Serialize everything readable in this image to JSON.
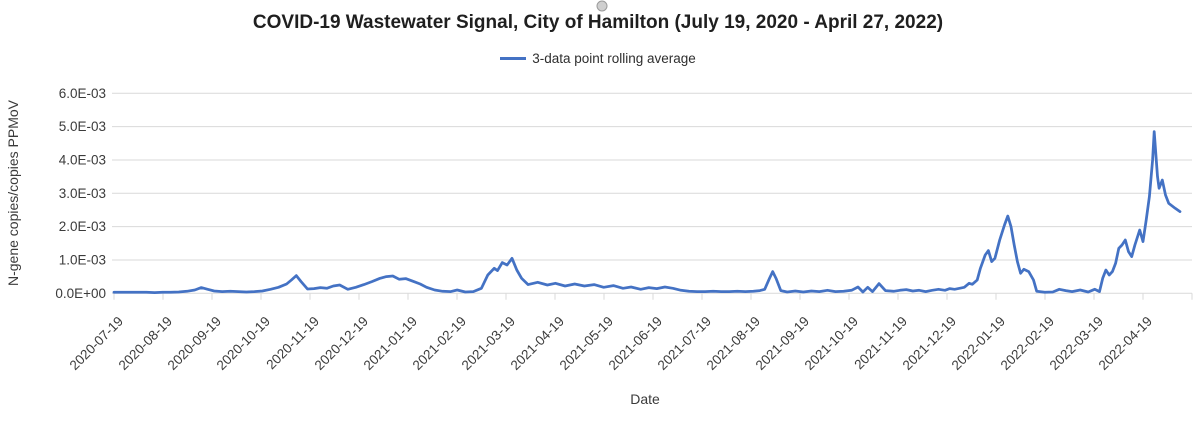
{
  "chart": {
    "title": "COVID-19 Wastewater Signal, City of Hamilton (July 19, 2020 - April 27, 2022)",
    "legend_label": "3-data point rolling average",
    "x_axis_title": "Date",
    "y_axis_title": "N-gene copies/copies PPMoV",
    "line_color": "#4472C4",
    "gridline_color": "#D9D9D9",
    "tick_label_color": "#3b3b3b"
  },
  "chart_data": {
    "type": "line",
    "title": "COVID-19 Wastewater Signal, City of Hamilton (July 19, 2020 - April 27, 2022)",
    "xlabel": "Date",
    "ylabel": "N-gene copies/copies PPMoV",
    "legend": [
      "3-data point rolling average"
    ],
    "legend_position": "top",
    "grid": "horizontal",
    "ylim": [
      0,
      0.006
    ],
    "y_tick_labels": [
      "0.0E+00",
      "1.0E-03",
      "2.0E-03",
      "3.0E-03",
      "4.0E-03",
      "5.0E-03",
      "6.0E-03"
    ],
    "x_tick_labels": [
      "2020-07-19",
      "2020-08-19",
      "2020-09-19",
      "2020-10-19",
      "2020-11-19",
      "2020-12-19",
      "2021-01-19",
      "2021-02-19",
      "2021-03-19",
      "2021-04-19",
      "2021-05-19",
      "2021-06-19",
      "2021-07-19",
      "2021-08-19",
      "2021-09-19",
      "2021-10-19",
      "2021-11-19",
      "2021-12-19",
      "2022-01-19",
      "2022-02-19",
      "2022-03-19",
      "2022-04-19"
    ],
    "series": [
      {
        "name": "3-data point rolling average",
        "color": "#4472C4",
        "points": [
          [
            "2020-07-19",
            3e-05
          ],
          [
            "2020-07-24",
            3e-05
          ],
          [
            "2020-07-29",
            2e-05
          ],
          [
            "2020-08-03",
            3e-05
          ],
          [
            "2020-08-08",
            3e-05
          ],
          [
            "2020-08-13",
            4e-05
          ],
          [
            "2020-08-18",
            6e-05
          ],
          [
            "2020-08-23",
            0.0001
          ],
          [
            "2020-08-27",
            0.00017
          ],
          [
            "2020-08-31",
            0.00012
          ],
          [
            "2020-09-04",
            7e-05
          ],
          [
            "2020-09-09",
            5e-05
          ],
          [
            "2020-09-14",
            6e-05
          ],
          [
            "2020-09-19",
            5e-05
          ],
          [
            "2020-09-24",
            4e-05
          ],
          [
            "2020-09-29",
            5e-05
          ],
          [
            "2020-10-04",
            7e-05
          ],
          [
            "2020-10-09",
            0.00012
          ],
          [
            "2020-10-14",
            0.00018
          ],
          [
            "2020-10-19",
            0.00028
          ],
          [
            "2020-10-22",
            0.0004
          ],
          [
            "2020-10-25",
            0.00053
          ],
          [
            "2020-10-28",
            0.00035
          ],
          [
            "2020-11-01",
            0.00013
          ],
          [
            "2020-11-05",
            0.00014
          ],
          [
            "2020-11-09",
            0.00017
          ],
          [
            "2020-11-13",
            0.00015
          ],
          [
            "2020-11-17",
            0.00022
          ],
          [
            "2020-11-21",
            0.00025
          ],
          [
            "2020-11-26",
            0.00012
          ],
          [
            "2020-12-01",
            0.00018
          ],
          [
            "2020-12-06",
            0.00026
          ],
          [
            "2020-12-11",
            0.00035
          ],
          [
            "2020-12-16",
            0.00045
          ],
          [
            "2020-12-20",
            0.0005
          ],
          [
            "2020-12-24",
            0.00052
          ],
          [
            "2020-12-28",
            0.00042
          ],
          [
            "2021-01-01",
            0.00044
          ],
          [
            "2021-01-06",
            0.00035
          ],
          [
            "2021-01-10",
            0.00028
          ],
          [
            "2021-01-14",
            0.00018
          ],
          [
            "2021-01-19",
            0.0001
          ],
          [
            "2021-01-24",
            6e-05
          ],
          [
            "2021-01-29",
            5e-05
          ],
          [
            "2021-02-02",
            0.0001
          ],
          [
            "2021-02-07",
            4e-05
          ],
          [
            "2021-02-12",
            5e-05
          ],
          [
            "2021-02-17",
            0.00015
          ],
          [
            "2021-02-21",
            0.00055
          ],
          [
            "2021-02-25",
            0.00075
          ],
          [
            "2021-02-27",
            0.00068
          ],
          [
            "2021-03-02",
            0.00092
          ],
          [
            "2021-03-05",
            0.00085
          ],
          [
            "2021-03-08",
            0.00105
          ],
          [
            "2021-03-11",
            0.0007
          ],
          [
            "2021-03-14",
            0.00045
          ],
          [
            "2021-03-18",
            0.00026
          ],
          [
            "2021-03-24",
            0.00033
          ],
          [
            "2021-03-30",
            0.00025
          ],
          [
            "2021-04-04",
            0.0003
          ],
          [
            "2021-04-10",
            0.00022
          ],
          [
            "2021-04-16",
            0.00028
          ],
          [
            "2021-04-22",
            0.00022
          ],
          [
            "2021-04-28",
            0.00026
          ],
          [
            "2021-05-04",
            0.00018
          ],
          [
            "2021-05-10",
            0.00023
          ],
          [
            "2021-05-16",
            0.00015
          ],
          [
            "2021-05-21",
            0.00019
          ],
          [
            "2021-05-27",
            0.00012
          ],
          [
            "2021-06-01",
            0.00017
          ],
          [
            "2021-06-06",
            0.00014
          ],
          [
            "2021-06-11",
            0.00019
          ],
          [
            "2021-06-16",
            0.00015
          ],
          [
            "2021-06-21",
            9e-05
          ],
          [
            "2021-06-26",
            6e-05
          ],
          [
            "2021-07-01",
            5e-05
          ],
          [
            "2021-07-06",
            5e-05
          ],
          [
            "2021-07-11",
            6e-05
          ],
          [
            "2021-07-16",
            5e-05
          ],
          [
            "2021-07-21",
            5e-05
          ],
          [
            "2021-07-26",
            6e-05
          ],
          [
            "2021-07-31",
            5e-05
          ],
          [
            "2021-08-05",
            6e-05
          ],
          [
            "2021-08-09",
            8e-05
          ],
          [
            "2021-08-12",
            0.00012
          ],
          [
            "2021-08-15",
            0.00045
          ],
          [
            "2021-08-17",
            0.00065
          ],
          [
            "2021-08-19",
            0.00045
          ],
          [
            "2021-08-22",
            8e-05
          ],
          [
            "2021-08-26",
            4e-05
          ],
          [
            "2021-08-31",
            7e-05
          ],
          [
            "2021-09-05",
            4e-05
          ],
          [
            "2021-09-10",
            7e-05
          ],
          [
            "2021-09-15",
            5e-05
          ],
          [
            "2021-09-20",
            9e-05
          ],
          [
            "2021-09-25",
            5e-05
          ],
          [
            "2021-09-30",
            6e-05
          ],
          [
            "2021-10-05",
            9e-05
          ],
          [
            "2021-10-09",
            0.00019
          ],
          [
            "2021-10-12",
            4e-05
          ],
          [
            "2021-10-15",
            0.00018
          ],
          [
            "2021-10-18",
            5e-05
          ],
          [
            "2021-10-22",
            0.00029
          ],
          [
            "2021-10-26",
            8e-05
          ],
          [
            "2021-10-31",
            6e-05
          ],
          [
            "2021-11-04",
            9e-05
          ],
          [
            "2021-11-08",
            0.00011
          ],
          [
            "2021-11-12",
            7e-05
          ],
          [
            "2021-11-16",
            9e-05
          ],
          [
            "2021-11-20",
            5e-05
          ],
          [
            "2021-11-24",
            9e-05
          ],
          [
            "2021-11-28",
            0.00012
          ],
          [
            "2021-12-02",
            9e-05
          ],
          [
            "2021-12-05",
            0.00014
          ],
          [
            "2021-12-08",
            0.00012
          ],
          [
            "2021-12-11",
            0.00015
          ],
          [
            "2021-12-14",
            0.00018
          ],
          [
            "2021-12-17",
            0.0003
          ],
          [
            "2021-12-19",
            0.00027
          ],
          [
            "2021-12-22",
            0.0004
          ],
          [
            "2021-12-24",
            0.00075
          ],
          [
            "2021-12-27",
            0.00115
          ],
          [
            "2021-12-29",
            0.00128
          ],
          [
            "2021-12-31",
            0.00095
          ],
          [
            "2022-01-02",
            0.00105
          ],
          [
            "2022-01-05",
            0.0016
          ],
          [
            "2022-01-08",
            0.00205
          ],
          [
            "2022-01-10",
            0.00232
          ],
          [
            "2022-01-12",
            0.002
          ],
          [
            "2022-01-14",
            0.00145
          ],
          [
            "2022-01-16",
            0.00095
          ],
          [
            "2022-01-18",
            0.0006
          ],
          [
            "2022-01-20",
            0.00072
          ],
          [
            "2022-01-23",
            0.00065
          ],
          [
            "2022-01-26",
            0.0004
          ],
          [
            "2022-01-28",
            6e-05
          ],
          [
            "2022-02-02",
            3e-05
          ],
          [
            "2022-02-07",
            4e-05
          ],
          [
            "2022-02-11",
            0.00012
          ],
          [
            "2022-02-15",
            8e-05
          ],
          [
            "2022-02-19",
            5e-05
          ],
          [
            "2022-02-24",
            0.0001
          ],
          [
            "2022-03-01",
            4e-05
          ],
          [
            "2022-03-05",
            0.00012
          ],
          [
            "2022-03-08",
            5e-05
          ],
          [
            "2022-03-10",
            0.00045
          ],
          [
            "2022-03-12",
            0.0007
          ],
          [
            "2022-03-14",
            0.00055
          ],
          [
            "2022-03-16",
            0.00065
          ],
          [
            "2022-03-18",
            0.0009
          ],
          [
            "2022-03-20",
            0.00135
          ],
          [
            "2022-03-22",
            0.00145
          ],
          [
            "2022-03-24",
            0.0016
          ],
          [
            "2022-03-26",
            0.00125
          ],
          [
            "2022-03-28",
            0.0011
          ],
          [
            "2022-03-30",
            0.00145
          ],
          [
            "2022-04-02",
            0.0019
          ],
          [
            "2022-04-04",
            0.00155
          ],
          [
            "2022-04-06",
            0.0022
          ],
          [
            "2022-04-08",
            0.0029
          ],
          [
            "2022-04-10",
            0.004
          ],
          [
            "2022-04-11",
            0.00485
          ],
          [
            "2022-04-13",
            0.0035
          ],
          [
            "2022-04-14",
            0.00315
          ],
          [
            "2022-04-16",
            0.0034
          ],
          [
            "2022-04-18",
            0.00295
          ],
          [
            "2022-04-20",
            0.0027
          ],
          [
            "2022-04-24",
            0.00255
          ],
          [
            "2022-04-27",
            0.00245
          ]
        ]
      }
    ]
  }
}
